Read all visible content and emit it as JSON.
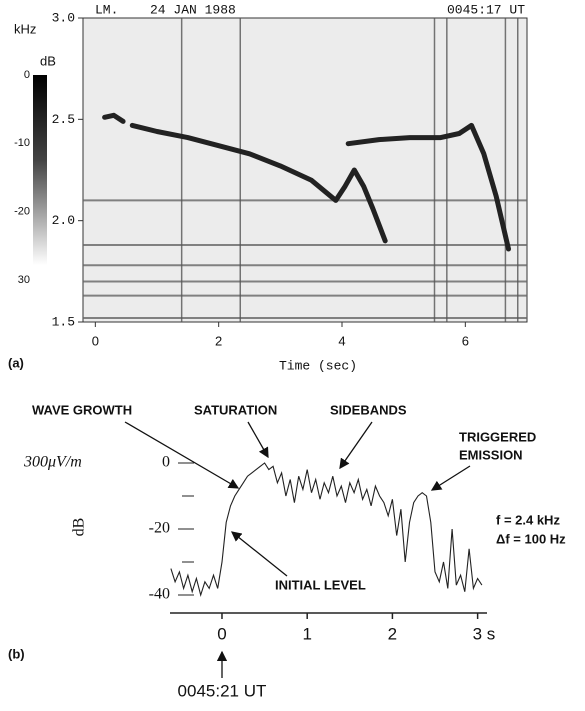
{
  "chart_data": [
    {
      "type": "spectrogram",
      "header": [
        "LM.",
        "24 JAN 1988",
        "0045:17 UT"
      ],
      "panel_label": "(a)",
      "y_label": "kHz",
      "x_label": "Time (sec)",
      "xlim": [
        -0.2,
        7.0
      ],
      "xticks": [
        0,
        2,
        4,
        6
      ],
      "ylim": [
        1.5,
        3.0
      ],
      "yticks": [
        1.5,
        {
          "value": 2.0,
          "label": "2.0"
        },
        2.5,
        {
          "value": 3.0,
          "label": "3.0"
        }
      ],
      "colorbar": {
        "label": "dB",
        "lim": [
          0,
          -30
        ],
        "ticks": [
          0,
          -10,
          -20,
          {
            "value": -30,
            "label": "30"
          }
        ]
      },
      "series": [
        {
          "color": "#222",
          "x": [
            0.15,
            0.3,
            0.45
          ],
          "values": [
            2.51,
            2.52,
            2.49
          ]
        },
        {
          "color": "#222",
          "x": [
            0.6,
            1.0,
            1.5,
            2.0,
            2.5,
            3.0,
            3.5,
            3.9,
            4.05,
            4.2,
            4.35,
            4.5,
            4.7
          ],
          "values": [
            2.47,
            2.44,
            2.41,
            2.37,
            2.33,
            2.27,
            2.2,
            2.1,
            2.17,
            2.25,
            2.17,
            2.06,
            1.9
          ]
        },
        {
          "color": "#222",
          "x": [
            4.1,
            4.6,
            5.1,
            5.6,
            5.9,
            6.1,
            6.3,
            6.5,
            6.7
          ],
          "values": [
            2.38,
            2.4,
            2.41,
            2.41,
            2.43,
            2.47,
            2.33,
            2.12,
            1.86
          ]
        }
      ],
      "hlines": [
        2.1,
        1.88,
        1.78,
        1.7,
        1.63,
        1.52
      ],
      "vlines": [
        1.4,
        2.35,
        5.5,
        5.7,
        6.65,
        6.85
      ]
    },
    {
      "type": "line",
      "panel_label": "(b)",
      "y_label": "dB",
      "scale_label": "300μV/m",
      "annotations": [
        "WAVE GROWTH",
        "SATURATION",
        "SIDEBANDS",
        "TRIGGERED",
        "EMISSION",
        "INITIAL LEVEL"
      ],
      "notes": [
        "f = 2.4 kHz",
        "Δf = 100 Hz"
      ],
      "time_mark": "0045:21 UT",
      "xlim": [
        -0.61,
        3.11
      ],
      "xticks": [
        0,
        1,
        2,
        {
          "value": 3,
          "label": "3 s"
        }
      ],
      "ylim": [
        -42,
        6
      ],
      "yticks": [
        0,
        -20,
        -40
      ],
      "color": "#222",
      "x": [
        -0.6,
        -0.55,
        -0.5,
        -0.45,
        -0.4,
        -0.35,
        -0.3,
        -0.25,
        -0.2,
        -0.15,
        -0.1,
        -0.05,
        0,
        0.05,
        0.1,
        0.15,
        0.2,
        0.25,
        0.3,
        0.35,
        0.4,
        0.45,
        0.5,
        0.55,
        0.6,
        0.65,
        0.7,
        0.75,
        0.8,
        0.85,
        0.9,
        0.95,
        1,
        1.05,
        1.1,
        1.15,
        1.2,
        1.25,
        1.3,
        1.35,
        1.4,
        1.45,
        1.5,
        1.55,
        1.6,
        1.65,
        1.7,
        1.75,
        1.8,
        1.85,
        1.9,
        1.95,
        2,
        2.05,
        2.1,
        2.15,
        2.2,
        2.25,
        2.3,
        2.35,
        2.4,
        2.45,
        2.5,
        2.55,
        2.6,
        2.65,
        2.7,
        2.75,
        2.8,
        2.85,
        2.9,
        2.95,
        3,
        3.05
      ],
      "values": [
        -32,
        -36,
        -33,
        -38,
        -34,
        -39,
        -35,
        -40,
        -36,
        -38,
        -34,
        -38,
        -30,
        -18,
        -13,
        -10,
        -8,
        -6,
        -4,
        -3,
        -2,
        -1,
        0,
        -2,
        -1,
        -6,
        -3,
        -10,
        -5,
        -12,
        -4,
        -8,
        -2,
        -9,
        -5,
        -11,
        -6,
        -9,
        -4,
        -10,
        -7,
        -12,
        -6,
        -9,
        -5,
        -11,
        -8,
        -13,
        -7,
        -10,
        -12,
        -16,
        -11,
        -22,
        -14,
        -30,
        -18,
        -12,
        -10,
        -9,
        -10,
        -18,
        -33,
        -36,
        -30,
        -38,
        -20,
        -37,
        -34,
        -39,
        -26,
        -38,
        -35,
        -37
      ]
    }
  ]
}
